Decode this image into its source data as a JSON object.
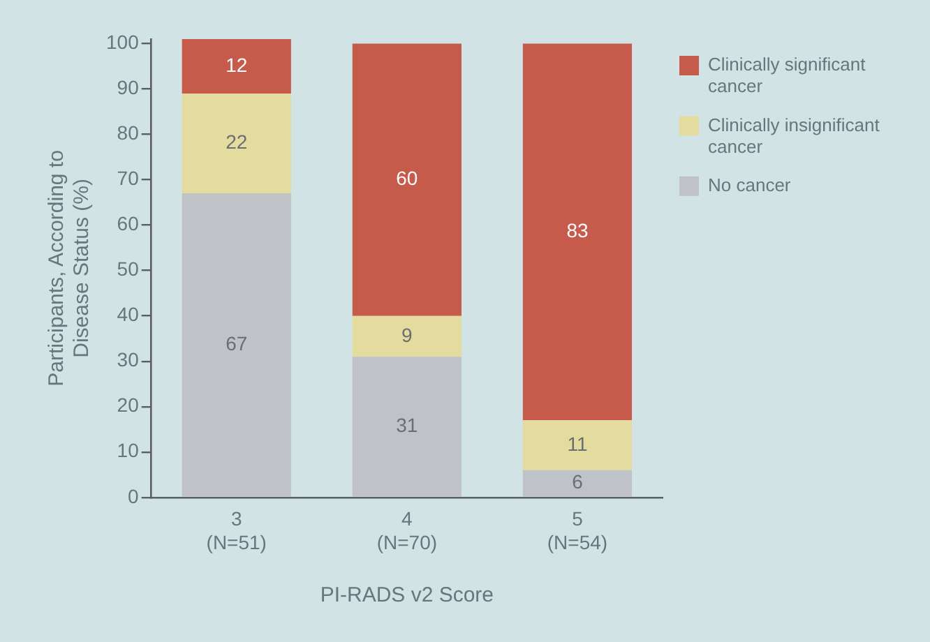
{
  "chart_data": {
    "type": "bar",
    "stacked": true,
    "categories": [
      "3 (N=51)",
      "4 (N=70)",
      "5 (N=54)"
    ],
    "xlabel": "PI-RADS v2 Score",
    "ylabel": "Participants, According to Disease Status (%)",
    "series": [
      {
        "name": "No cancer",
        "color": "#bfc3c7",
        "values": [
          67,
          31,
          6
        ]
      },
      {
        "name": "Clinically insignificant cancer",
        "color": "#e3dc9e",
        "values": [
          22,
          9,
          11
        ]
      },
      {
        "name": "Clinically significant cancer",
        "color": "#c65a4b",
        "values": [
          12,
          60,
          83
        ]
      }
    ],
    "ylim": [
      0,
      101
    ],
    "yticks": [
      0,
      10,
      20,
      30,
      40,
      50,
      60,
      70,
      80,
      90,
      100
    ],
    "data_labels": true,
    "legend": "top right"
  }
}
